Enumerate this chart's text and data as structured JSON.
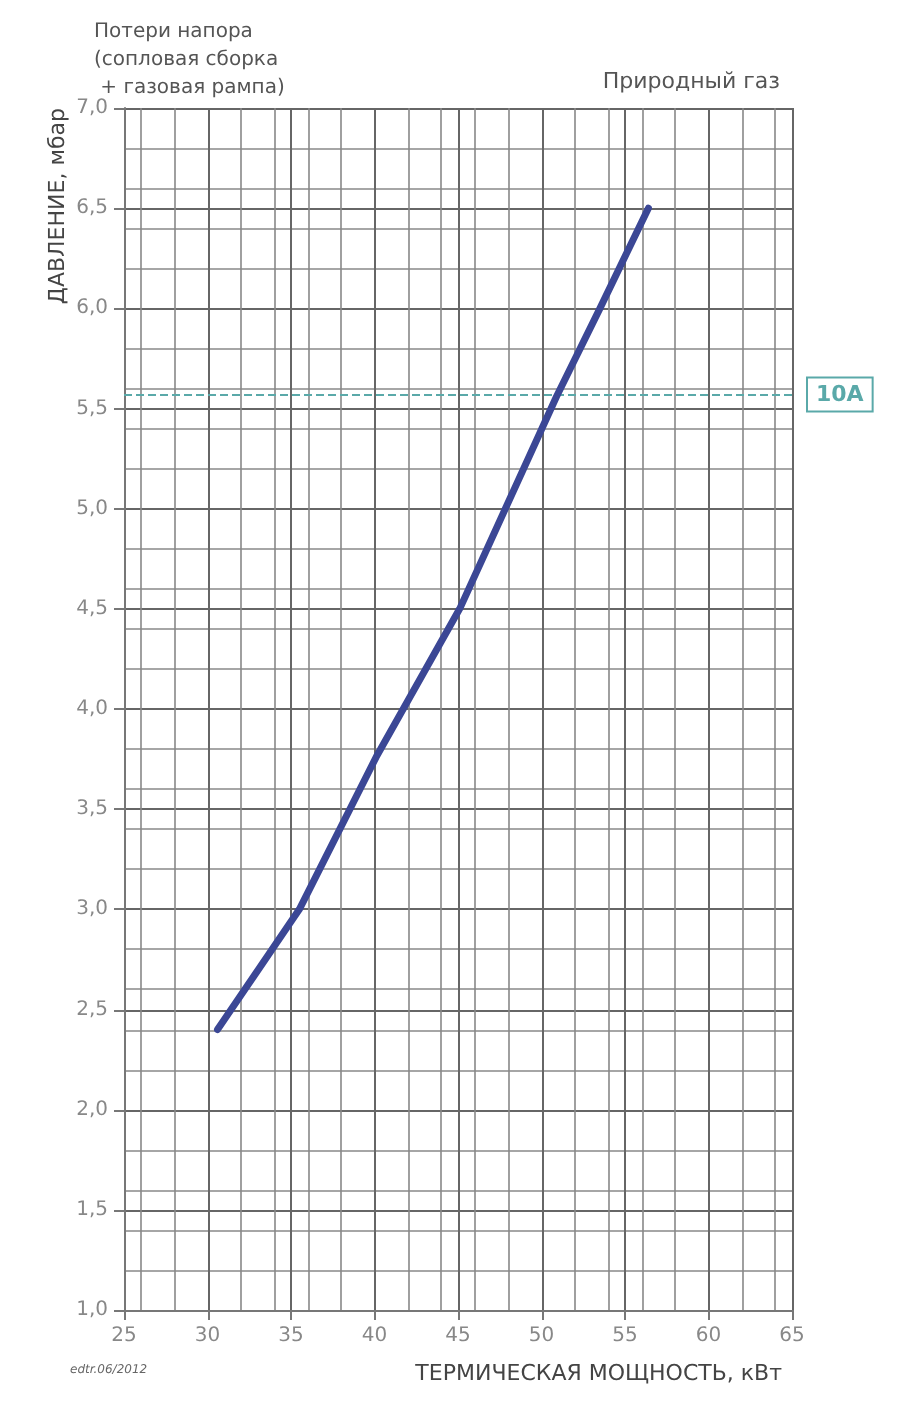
{
  "chart_data": {
    "type": "line",
    "title": "Потери напора (сопловая сборка + газовая рампа)",
    "subtitle": "Природный газ",
    "xlabel": "ТЕРМИЧЕСКАЯ МОЩНОСТЬ, кВт",
    "ylabel": "ДАВЛЕНИЕ, мбар",
    "annotations": [
      "edtr.06/2012"
    ],
    "series": [
      {
        "color": "#3b4795",
        "x": [
          30.6,
          35.5,
          40.1,
          45.1,
          50.9,
          53.5,
          56.4
        ],
        "values": [
          2.4,
          3.0,
          3.76,
          4.5,
          5.56,
          6.0,
          6.5
        ]
      }
    ],
    "xlim": [
      25,
      65
    ],
    "xticks": [
      25,
      30,
      35,
      40,
      45,
      50,
      55,
      60,
      65
    ],
    "ylim": [
      1,
      7
    ],
    "yticks": [
      {
        "value": 1,
        "label": "1,0"
      },
      {
        "value": 1.5,
        "label": "1,5"
      },
      {
        "value": 2,
        "label": "2,0"
      },
      {
        "value": 2.5,
        "label": "2,5"
      },
      {
        "value": 3,
        "label": "3,0"
      },
      {
        "value": 3.5,
        "label": "3,5"
      },
      {
        "value": 4,
        "label": "4,0"
      },
      {
        "value": 4.5,
        "label": "4,5"
      },
      {
        "value": 5,
        "label": "5,0"
      },
      {
        "value": 5.5,
        "label": "5,5"
      },
      {
        "value": 6,
        "label": "6,0"
      },
      {
        "value": 6.5,
        "label": "6,5"
      },
      {
        "value": 7,
        "label": "7,0"
      }
    ],
    "ref_lines": [
      {
        "axis": "y",
        "value": 5.57,
        "label": "10A",
        "color": "#5aa9a9",
        "line_style": "dashed"
      }
    ],
    "grid": true,
    "marker": "none",
    "line_style": "solid"
  }
}
